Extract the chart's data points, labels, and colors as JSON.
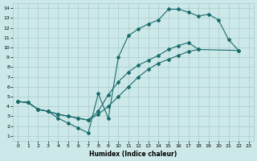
{
  "xlabel": "Humidex (Indice chaleur)",
  "bg_color": "#cce8e8",
  "grid_color": "#aacccc",
  "line_color": "#1a6b6b",
  "xlim": [
    -0.5,
    23.5
  ],
  "ylim": [
    0.5,
    14.5
  ],
  "xticks": [
    0,
    1,
    2,
    3,
    4,
    5,
    6,
    7,
    8,
    9,
    10,
    11,
    12,
    13,
    14,
    15,
    16,
    17,
    18,
    19,
    20,
    21,
    22,
    23
  ],
  "yticks": [
    1,
    2,
    3,
    4,
    5,
    6,
    7,
    8,
    9,
    10,
    11,
    12,
    13,
    14
  ],
  "line1_x": [
    0,
    1,
    2,
    3,
    4,
    5,
    6,
    7,
    8,
    9,
    10,
    11,
    12,
    13,
    14,
    15,
    16,
    17,
    18,
    19,
    20,
    21,
    22
  ],
  "line1_y": [
    4.5,
    4.4,
    3.7,
    3.5,
    2.8,
    2.3,
    1.8,
    1.3,
    5.3,
    2.8,
    9.0,
    11.2,
    11.9,
    12.4,
    12.8,
    13.9,
    13.9,
    13.6,
    13.2,
    13.4,
    12.8,
    10.8,
    9.7
  ],
  "line2_x": [
    0,
    1,
    2,
    3,
    4,
    5,
    6,
    7,
    8,
    9,
    10,
    11,
    12,
    13,
    14,
    15,
    16,
    17,
    18,
    22
  ],
  "line2_y": [
    4.5,
    4.4,
    3.7,
    3.5,
    3.2,
    3.0,
    2.8,
    2.6,
    3.2,
    4.0,
    5.0,
    6.0,
    7.0,
    7.8,
    8.4,
    8.8,
    9.2,
    9.6,
    9.8,
    9.7
  ],
  "line3_x": [
    0,
    1,
    2,
    3,
    4,
    5,
    6,
    7,
    8,
    9,
    10,
    11,
    12,
    13,
    14,
    15,
    16,
    17,
    18
  ],
  "line3_y": [
    4.5,
    4.4,
    3.7,
    3.5,
    3.2,
    3.0,
    2.8,
    2.6,
    3.5,
    5.2,
    6.5,
    7.5,
    8.2,
    8.7,
    9.2,
    9.8,
    10.2,
    10.5,
    9.8
  ]
}
